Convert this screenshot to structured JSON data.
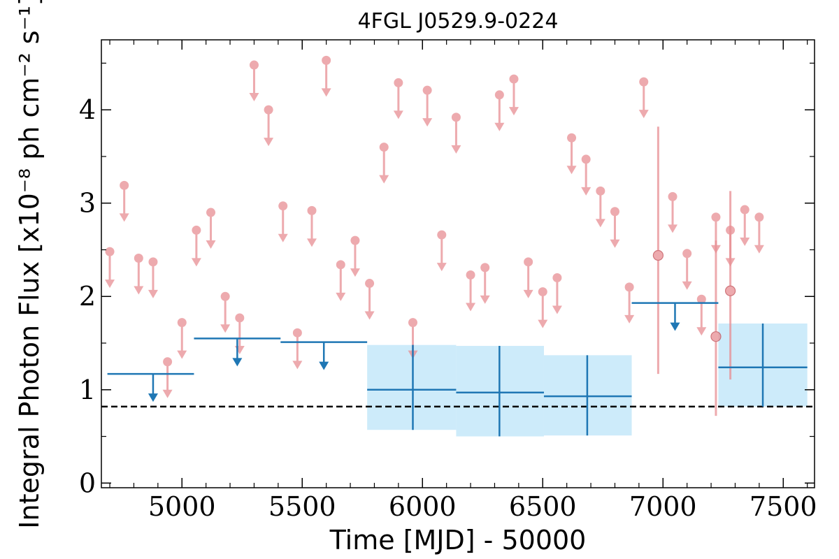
{
  "chart_data": {
    "type": "scatter",
    "title": "4FGL J0529.9-0224",
    "xlabel": "Time [MJD] - 50000",
    "ylabel": "Integral Photon Flux [x10⁻⁸ ph cm⁻² s⁻¹]",
    "xlim": [
      4665,
      7630
    ],
    "ylim": [
      -0.05,
      4.75
    ],
    "xticks": [
      5000,
      5500,
      6000,
      6500,
      7000,
      7500
    ],
    "yticks": [
      0,
      1,
      2,
      3,
      4
    ],
    "grid": false,
    "reference_line": {
      "y": 0.82,
      "style": "dashed",
      "color": "#000000"
    },
    "colors": {
      "short_bins": "#e88e93",
      "long_bins": "#1f77b4",
      "band": "#cdebfa"
    },
    "short_bin_upper_limits": [
      {
        "x": 4700,
        "y": 2.48
      },
      {
        "x": 4760,
        "y": 3.19
      },
      {
        "x": 4820,
        "y": 2.41
      },
      {
        "x": 4880,
        "y": 2.37
      },
      {
        "x": 4940,
        "y": 1.3
      },
      {
        "x": 5000,
        "y": 1.72
      },
      {
        "x": 5060,
        "y": 2.71
      },
      {
        "x": 5120,
        "y": 2.9
      },
      {
        "x": 5180,
        "y": 2.0
      },
      {
        "x": 5240,
        "y": 1.77
      },
      {
        "x": 5300,
        "y": 4.48
      },
      {
        "x": 5360,
        "y": 4.0
      },
      {
        "x": 5420,
        "y": 2.97
      },
      {
        "x": 5480,
        "y": 1.61
      },
      {
        "x": 5540,
        "y": 2.92
      },
      {
        "x": 5600,
        "y": 4.53
      },
      {
        "x": 5660,
        "y": 2.34
      },
      {
        "x": 5720,
        "y": 2.6
      },
      {
        "x": 5780,
        "y": 2.14
      },
      {
        "x": 5840,
        "y": 3.6
      },
      {
        "x": 5900,
        "y": 4.29
      },
      {
        "x": 5960,
        "y": 1.72
      },
      {
        "x": 6020,
        "y": 4.21
      },
      {
        "x": 6080,
        "y": 2.66
      },
      {
        "x": 6140,
        "y": 3.92
      },
      {
        "x": 6200,
        "y": 2.23
      },
      {
        "x": 6260,
        "y": 2.31
      },
      {
        "x": 6320,
        "y": 4.16
      },
      {
        "x": 6380,
        "y": 4.33
      },
      {
        "x": 6440,
        "y": 2.37
      },
      {
        "x": 6500,
        "y": 2.05
      },
      {
        "x": 6560,
        "y": 2.2
      },
      {
        "x": 6620,
        "y": 3.7
      },
      {
        "x": 6680,
        "y": 3.47
      },
      {
        "x": 6740,
        "y": 3.13
      },
      {
        "x": 6800,
        "y": 2.91
      },
      {
        "x": 6860,
        "y": 2.1
      },
      {
        "x": 6920,
        "y": 4.3
      },
      {
        "x": 7040,
        "y": 3.07
      },
      {
        "x": 7100,
        "y": 2.46
      },
      {
        "x": 7160,
        "y": 1.97
      },
      {
        "x": 7220,
        "y": 2.85
      },
      {
        "x": 7280,
        "y": 2.71
      },
      {
        "x": 7340,
        "y": 2.93
      },
      {
        "x": 7400,
        "y": 2.85
      }
    ],
    "short_bin_detections": [
      {
        "x": 6980,
        "y": 2.44,
        "ylow": 1.17,
        "yhigh": 3.82
      },
      {
        "x": 7220,
        "y": 1.57,
        "ylow": 0.72,
        "yhigh": 2.6
      },
      {
        "x": 7280,
        "y": 2.06,
        "ylow": 1.11,
        "yhigh": 3.13
      }
    ],
    "long_bin_upper_limits": [
      {
        "x": 4880,
        "xlow": 4690,
        "xhigh": 5050,
        "y": 1.17
      },
      {
        "x": 5230,
        "xlow": 5050,
        "xhigh": 5410,
        "y": 1.55
      },
      {
        "x": 5590,
        "xlow": 5410,
        "xhigh": 5770,
        "y": 1.51
      },
      {
        "x": 7050,
        "xlow": 6870,
        "xhigh": 7230,
        "y": 1.93
      }
    ],
    "long_bin_detections": [
      {
        "x": 5960,
        "xlow": 5770,
        "xhigh": 6140,
        "y": 1.0,
        "ylow": 0.57,
        "yhigh": 1.48
      },
      {
        "x": 6320,
        "xlow": 6140,
        "xhigh": 6505,
        "y": 0.97,
        "ylow": 0.5,
        "yhigh": 1.47
      },
      {
        "x": 6685,
        "xlow": 6505,
        "xhigh": 6870,
        "y": 0.93,
        "ylow": 0.51,
        "yhigh": 1.37
      },
      {
        "x": 7415,
        "xlow": 7230,
        "xhigh": 7600,
        "y": 1.24,
        "ylow": 0.82,
        "yhigh": 1.71
      }
    ]
  }
}
